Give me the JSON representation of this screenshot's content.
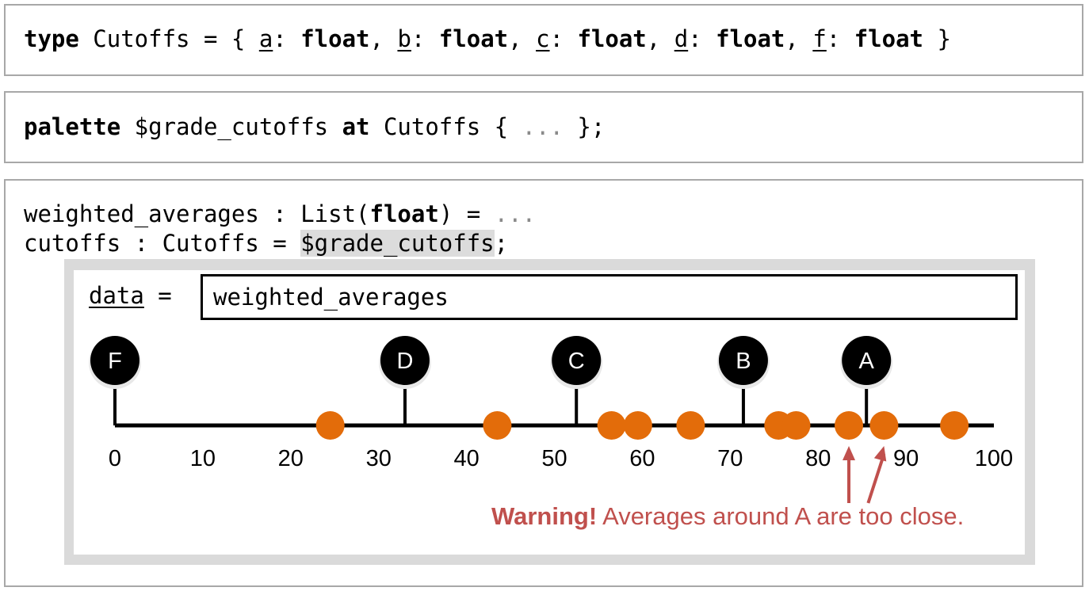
{
  "type_decl": {
    "kw_type": "type",
    "name": " Cutoffs = { ",
    "fields": [
      {
        "name": "a",
        "sep": ": ",
        "type": "float",
        "end": ", "
      },
      {
        "name": "b",
        "sep": ": ",
        "type": "float",
        "end": ", "
      },
      {
        "name": "c",
        "sep": ": ",
        "type": "float",
        "end": ", "
      },
      {
        "name": "d",
        "sep": ": ",
        "type": "float",
        "end": ", "
      },
      {
        "name": "f",
        "sep": ": ",
        "type": "float",
        "end": " }"
      }
    ]
  },
  "palette_decl": {
    "kw_palette": "palette",
    "var": " $grade_cutoffs ",
    "kw_at": "at",
    "type": " Cutoffs { ",
    "ellipsis": "...",
    "end": " };"
  },
  "code": {
    "line1_pre": "weighted_averages : List(",
    "line1_kw": "float",
    "line1_post": ") = ",
    "line1_ellipsis": "...",
    "line2_pre": "cutoffs : Cutoffs = ",
    "line2_hl": "$grade_cutoffs",
    "line2_post": ";"
  },
  "widget": {
    "data_label": "data",
    "data_eq": " =",
    "data_value": "weighted_averages",
    "warning_bold": "Warning!",
    "warning_text": " Averages around A are too close."
  },
  "colors": {
    "point": "#e36c0a",
    "marker": "#000000",
    "warning": "#c0504d",
    "axis": "#000000"
  },
  "chart_data": {
    "type": "scatter",
    "xlim": [
      0,
      100
    ],
    "ticks": [
      "0",
      "10",
      "20",
      "30",
      "40",
      "50",
      "60",
      "70",
      "80",
      "90",
      "100"
    ],
    "tick_values": [
      0,
      10,
      20,
      30,
      40,
      50,
      60,
      70,
      80,
      90,
      100
    ],
    "cutoffs": [
      {
        "label": "F",
        "value": 0
      },
      {
        "label": "D",
        "value": 33
      },
      {
        "label": "C",
        "value": 52.5
      },
      {
        "label": "B",
        "value": 71.5
      },
      {
        "label": "A",
        "value": 85.5
      }
    ],
    "points": [
      24.5,
      43.5,
      56.5,
      59.5,
      65.5,
      75.5,
      77.5,
      83.5,
      87.5,
      95.5
    ],
    "warning_points": [
      83.5,
      87.5
    ]
  }
}
